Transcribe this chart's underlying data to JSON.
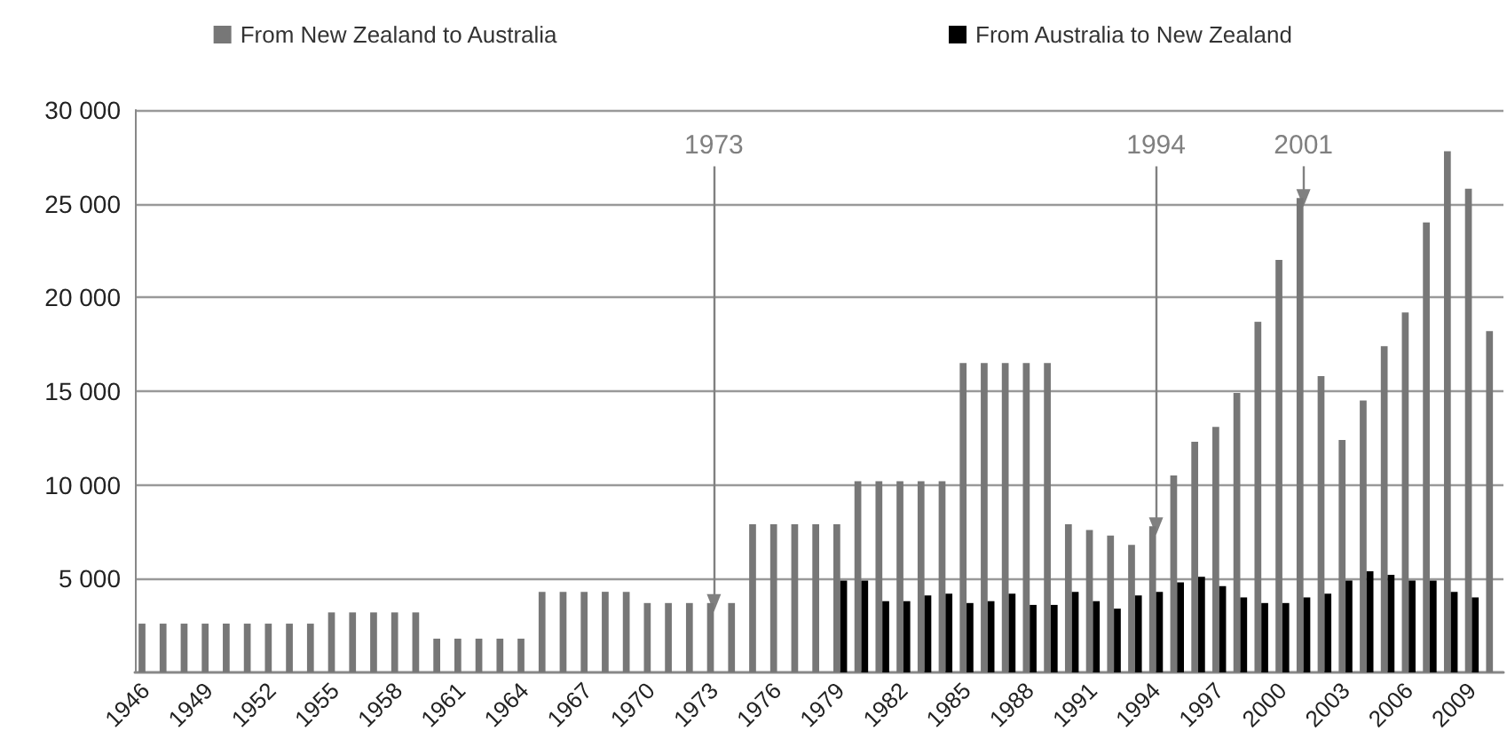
{
  "chart_data": {
    "type": "bar",
    "categories": [
      "1946",
      null,
      null,
      "1949",
      null,
      null,
      "1952",
      null,
      null,
      "1955",
      null,
      null,
      "1958",
      null,
      null,
      "1961",
      null,
      null,
      "1964",
      null,
      null,
      "1967",
      null,
      null,
      "1970",
      null,
      null,
      "1973",
      null,
      null,
      "1976",
      null,
      null,
      "1979",
      null,
      null,
      "1982",
      null,
      null,
      "1985",
      null,
      null,
      "1988",
      null,
      null,
      "1991",
      null,
      null,
      "1994",
      null,
      null,
      "1997",
      null,
      null,
      "2000",
      null,
      null,
      "2003",
      null,
      null,
      "2006",
      null,
      null,
      "2009",
      null
    ],
    "series": [
      {
        "name": "From New Zealand to Australia",
        "color": "#777777",
        "values": [
          2600,
          2600,
          2600,
          2600,
          2600,
          2600,
          2600,
          2600,
          2600,
          3200,
          3200,
          3200,
          3200,
          3200,
          1800,
          1800,
          1800,
          1800,
          1800,
          4300,
          4300,
          4300,
          4300,
          4300,
          3700,
          3700,
          3700,
          3700,
          3700,
          7900,
          7900,
          7900,
          7900,
          7900,
          10200,
          10200,
          10200,
          10200,
          10200,
          16500,
          16500,
          16500,
          16500,
          16500,
          7900,
          7600,
          7300,
          6800,
          7800,
          10500,
          12300,
          13100,
          14900,
          18700,
          22000,
          25300,
          15800,
          12400,
          14500,
          17400,
          19200,
          24000,
          27800,
          25800,
          18200
        ]
      },
      {
        "name": "From Australia to New Zealand",
        "color": "#000000",
        "values": [
          null,
          null,
          null,
          null,
          null,
          null,
          null,
          null,
          null,
          null,
          null,
          null,
          null,
          null,
          null,
          null,
          null,
          null,
          null,
          null,
          null,
          null,
          null,
          null,
          null,
          null,
          null,
          null,
          null,
          null,
          null,
          null,
          null,
          4900,
          4900,
          3800,
          3800,
          4100,
          4200,
          3700,
          3800,
          4200,
          3600,
          3600,
          4300,
          3800,
          3400,
          4100,
          4300,
          4800,
          5100,
          4600,
          4000,
          3700,
          3700,
          4000,
          4200,
          4900,
          5400,
          5200,
          4900,
          4900,
          4300,
          4000,
          null
        ]
      }
    ],
    "ylim": [
      0,
      30000
    ],
    "yticks": [
      5000,
      10000,
      15000,
      20000,
      25000,
      30000
    ],
    "grid": "y",
    "legend": "top",
    "annotations": [
      {
        "text": "1973",
        "x": "1973",
        "y": 3700
      },
      {
        "text": "1994",
        "x": "1994",
        "y": 7800
      },
      {
        "text": "2001",
        "y": 25300
      }
    ]
  }
}
